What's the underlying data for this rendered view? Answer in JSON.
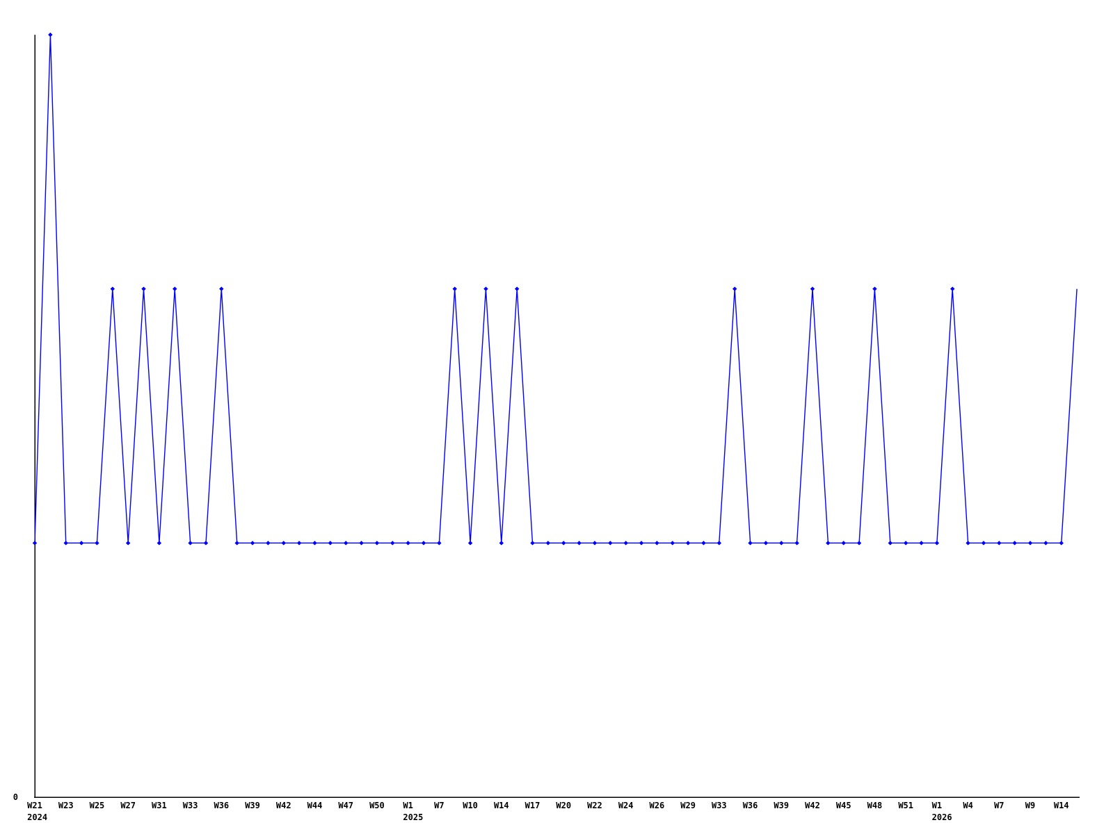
{
  "figure": {
    "background_color": "#ffffff",
    "axis_color": "#000000",
    "text_color": "#000000"
  },
  "chart_data": {
    "type": "line",
    "title": "",
    "xlabel": "",
    "ylabel": "",
    "ylim": [
      0,
      3
    ],
    "y_origin_label": "0",
    "grid": "off",
    "legend": "none",
    "series_color": "#0000ff",
    "marker": "diamond-icon",
    "values": [
      1,
      3,
      1,
      1,
      1,
      2,
      1,
      2,
      1,
      2,
      1,
      1,
      2,
      1,
      1,
      1,
      1,
      1,
      1,
      1,
      1,
      1,
      1,
      1,
      1,
      1,
      1,
      2,
      1,
      2,
      1,
      2,
      1,
      1,
      1,
      1,
      1,
      1,
      1,
      1,
      1,
      1,
      1,
      1,
      1,
      2,
      1,
      1,
      1,
      1,
      2,
      1,
      1,
      1,
      2,
      1,
      1,
      1,
      1,
      2,
      1,
      1,
      1,
      1,
      1,
      1,
      1,
      2
    ],
    "tick_step": 2,
    "ticks": [
      {
        "week": "W21",
        "year": "2024"
      },
      {
        "week": "W23"
      },
      {
        "week": "W25"
      },
      {
        "week": "W27"
      },
      {
        "week": "W31"
      },
      {
        "week": "W33"
      },
      {
        "week": "W36"
      },
      {
        "week": "W39"
      },
      {
        "week": "W42"
      },
      {
        "week": "W44"
      },
      {
        "week": "W47"
      },
      {
        "week": "W50"
      },
      {
        "week": "W1",
        "year": "2025"
      },
      {
        "week": "W7"
      },
      {
        "week": "W10"
      },
      {
        "week": "W14"
      },
      {
        "week": "W17"
      },
      {
        "week": "W20"
      },
      {
        "week": "W22"
      },
      {
        "week": "W24"
      },
      {
        "week": "W26"
      },
      {
        "week": "W29"
      },
      {
        "week": "W33"
      },
      {
        "week": "W36"
      },
      {
        "week": "W39"
      },
      {
        "week": "W42"
      },
      {
        "week": "W45"
      },
      {
        "week": "W48"
      },
      {
        "week": "W51"
      },
      {
        "week": "W1",
        "year": "2026"
      },
      {
        "week": "W4"
      },
      {
        "week": "W7"
      },
      {
        "week": "W9"
      },
      {
        "week": "W14"
      }
    ],
    "last_point_clipped": true
  }
}
